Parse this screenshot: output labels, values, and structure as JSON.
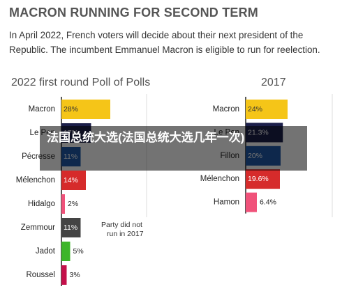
{
  "header": {
    "title": "MACRON RUNNING FOR SECOND TERM",
    "subtitle": "In April 2022, French voters will decide about their next president of the Republic. The incumbent Emmanuel Macron is eligible to run for reelection."
  },
  "overlay": {
    "text": "法国总统大选(法国总统大选几年一次)"
  },
  "chart_data": [
    {
      "type": "bar",
      "orientation": "horizontal",
      "title": "2022 first round Poll of Polls",
      "xlim": [
        0,
        30
      ],
      "categories": [
        "Macron",
        "Le Pen",
        "Pécresse",
        "Mélenchon",
        "Hidalgo",
        "Zemmour",
        "Jadot",
        "Roussel"
      ],
      "values": [
        28,
        17,
        11,
        14,
        2,
        11,
        5,
        3
      ],
      "labels": [
        "28%",
        "17%",
        "11%",
        "14%",
        "2%",
        "11%",
        "5%",
        "3%"
      ],
      "colors": [
        "#f5c518",
        "#1c1f4a",
        "#1f5aa8",
        "#d62b2b",
        "#f0527a",
        "#444444",
        "#3db52a",
        "#c4104a"
      ],
      "annotation": "Party did not run in 2017"
    },
    {
      "type": "bar",
      "orientation": "horizontal",
      "title": "2017",
      "xlim": [
        0,
        30
      ],
      "categories": [
        "Macron",
        "Le Pen",
        "Fillon",
        "Mélenchon",
        "Hamon"
      ],
      "values": [
        24,
        21.3,
        20,
        19.6,
        6.4
      ],
      "labels": [
        "24%",
        "21.3%",
        "20%",
        "19.6%",
        "6.4%"
      ],
      "colors": [
        "#f5c518",
        "#1c1f4a",
        "#1f5aa8",
        "#d62b2b",
        "#f0527a"
      ]
    }
  ]
}
